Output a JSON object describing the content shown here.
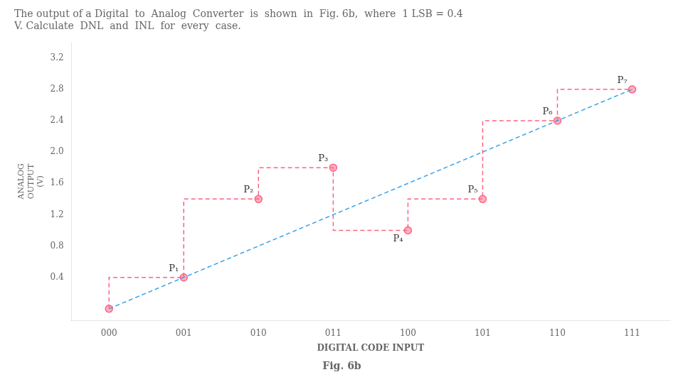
{
  "chart_data": {
    "type": "line",
    "title": [
      "The output of a Digital  to  Analog  Converter  is  shown  in  Fig. 6b,  where  1 LSB = 0.4",
      "V. Calculate  DNL  and  INL  for  every  case."
    ],
    "caption": "Fig. 6b",
    "x_label": "DIGITAL CODE INPUT",
    "y_label": "ANALOG\nOUTPUT\n(V)",
    "categories": [
      "000",
      "001",
      "010",
      "011",
      "100",
      "101",
      "110",
      "111"
    ],
    "series": [
      {
        "type": "line",
        "line_style": "dashed",
        "marker": "none",
        "values": [
          0.0,
          0.4,
          0.8,
          1.2,
          1.6,
          2.0,
          2.4,
          2.8
        ]
      },
      {
        "type": "step",
        "line_style": "dashed",
        "marker": "circle",
        "values": [
          0.0,
          0.4,
          1.4,
          1.8,
          1.0,
          1.4,
          2.4,
          2.8
        ],
        "point_labels": [
          null,
          "P₁",
          "P₂",
          "P₃",
          "P₄",
          "P₅",
          "P₆",
          "P₇"
        ]
      }
    ],
    "ylim": [
      -0.15,
      3.4
    ],
    "yticks": [
      0.4,
      0.8,
      1.2,
      1.6,
      {
        "value": 2.0,
        "label": "2.0"
      },
      2.4,
      2.8,
      3.2
    ],
    "grid": false
  }
}
